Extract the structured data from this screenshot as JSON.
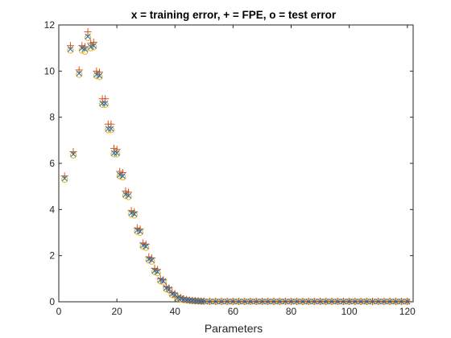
{
  "chart_data": {
    "type": "scatter",
    "title": "x = training error,   + = FPE,   o = test error",
    "xlabel": "Parameters",
    "ylabel": "",
    "xlim": [
      0,
      122
    ],
    "ylim": [
      0,
      12
    ],
    "xticks": [
      "0",
      "20",
      "40",
      "60",
      "80",
      "100",
      "120"
    ],
    "yticks": [
      "0",
      "2",
      "4",
      "6",
      "8",
      "10",
      "12"
    ],
    "grid": false,
    "x": [
      2,
      4,
      5,
      7,
      8,
      9,
      10,
      11,
      12,
      13,
      14,
      15,
      16,
      17,
      18,
      19,
      20,
      21,
      22,
      23,
      24,
      25,
      26,
      27,
      28,
      29,
      30,
      31,
      32,
      33,
      34,
      35,
      36,
      37,
      38,
      39,
      40,
      41,
      42,
      43,
      44,
      45,
      46,
      47,
      48,
      49,
      50,
      52,
      54,
      56,
      58,
      60,
      62,
      64,
      66,
      68,
      70,
      72,
      74,
      76,
      78,
      80,
      82,
      84,
      86,
      88,
      90,
      92,
      94,
      96,
      98,
      100,
      102,
      104,
      106,
      108,
      110,
      112,
      114,
      116,
      118,
      120
    ],
    "series": [
      {
        "name": "training error",
        "marker": "x",
        "color": "#1f6fb2",
        "values": [
          5.35,
          10.95,
          6.4,
          9.9,
          11.0,
          10.95,
          11.5,
          11.05,
          11.1,
          9.85,
          9.8,
          8.6,
          8.6,
          7.5,
          7.5,
          6.45,
          6.45,
          5.5,
          5.45,
          4.65,
          4.6,
          3.85,
          3.8,
          3.1,
          3.05,
          2.45,
          2.4,
          1.85,
          1.8,
          1.35,
          1.3,
          0.95,
          0.9,
          0.6,
          0.55,
          0.35,
          0.3,
          0.18,
          0.15,
          0.1,
          0.08,
          0.06,
          0.05,
          0.04,
          0.03,
          0.02,
          0.02,
          0.01,
          0.01,
          0.01,
          0.01,
          0.01,
          0.01,
          0.01,
          0.01,
          0.01,
          0.01,
          0.01,
          0.01,
          0.01,
          0.01,
          0.01,
          0.01,
          0.01,
          0.01,
          0.01,
          0.01,
          0.01,
          0.01,
          0.01,
          0.01,
          0.01,
          0.01,
          0.01,
          0.01,
          0.01,
          0.01,
          0.01,
          0.01,
          0.01,
          0.01,
          0.01
        ]
      },
      {
        "name": "FPE",
        "marker": "+",
        "color": "#d95319",
        "values": [
          5.45,
          11.1,
          6.5,
          10.05,
          11.1,
          11.05,
          11.7,
          11.2,
          11.25,
          10.0,
          9.95,
          8.8,
          8.8,
          7.7,
          7.7,
          6.65,
          6.6,
          5.65,
          5.6,
          4.8,
          4.75,
          3.95,
          3.9,
          3.2,
          3.15,
          2.55,
          2.5,
          1.95,
          1.9,
          1.45,
          1.4,
          1.0,
          0.95,
          0.65,
          0.6,
          0.4,
          0.35,
          0.2,
          0.18,
          0.12,
          0.1,
          0.07,
          0.06,
          0.05,
          0.04,
          0.03,
          0.03,
          0.02,
          0.02,
          0.02,
          0.02,
          0.02,
          0.02,
          0.02,
          0.02,
          0.02,
          0.02,
          0.02,
          0.02,
          0.02,
          0.02,
          0.02,
          0.02,
          0.02,
          0.02,
          0.02,
          0.02,
          0.02,
          0.02,
          0.02,
          0.02,
          0.02,
          0.02,
          0.02,
          0.02,
          0.02,
          0.02,
          0.02,
          0.02,
          0.02,
          0.02,
          0.02
        ]
      },
      {
        "name": "test error",
        "marker": "o",
        "color": "#edb120",
        "values": [
          5.3,
          10.9,
          6.35,
          9.85,
          10.9,
          10.85,
          11.45,
          11.0,
          11.05,
          9.8,
          9.75,
          8.55,
          8.55,
          7.45,
          7.45,
          6.4,
          6.4,
          5.45,
          5.4,
          4.6,
          4.55,
          3.8,
          3.75,
          3.05,
          3.0,
          2.4,
          2.35,
          1.8,
          1.75,
          1.3,
          1.25,
          0.9,
          0.85,
          0.55,
          0.5,
          0.3,
          0.28,
          0.15,
          0.13,
          0.08,
          0.07,
          0.05,
          0.04,
          0.03,
          0.03,
          0.02,
          0.02,
          0.01,
          0.01,
          0.01,
          0.01,
          0.01,
          0.01,
          0.01,
          0.01,
          0.01,
          0.01,
          0.01,
          0.01,
          0.01,
          0.01,
          0.01,
          0.01,
          0.01,
          0.01,
          0.01,
          0.01,
          0.01,
          0.01,
          0.01,
          0.01,
          0.01,
          0.01,
          0.01,
          0.01,
          0.01,
          0.01,
          0.01,
          0.01,
          0.01,
          0.01,
          0.01
        ]
      }
    ]
  }
}
